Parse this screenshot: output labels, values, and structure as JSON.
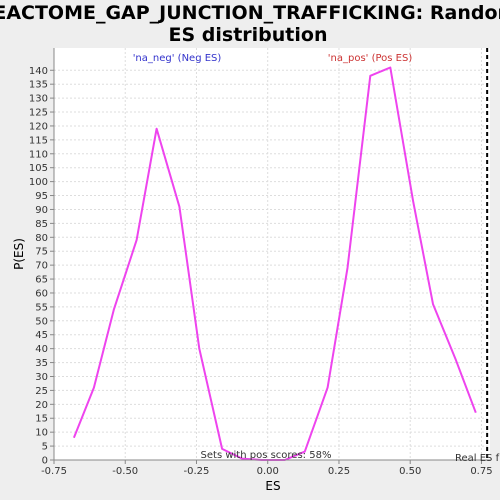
{
  "chart_data": {
    "type": "line",
    "title_line1": "REACTOME_GAP_JUNCTION_TRAFFICKING: Random",
    "title_line2": "ES distribution",
    "xlabel": "ES",
    "ylabel": "P(ES)",
    "xlim": [
      -0.75,
      0.78
    ],
    "ylim": [
      0,
      148
    ],
    "x_ticks": [
      -0.75,
      -0.5,
      -0.25,
      0.0,
      0.25,
      0.5,
      0.75
    ],
    "x_tick_labels": [
      "-0.75",
      "-0.50",
      "-0.25",
      "0.00",
      "0.25",
      "0.50",
      "0.75"
    ],
    "y_ticks": [
      0,
      5,
      10,
      15,
      20,
      25,
      30,
      35,
      40,
      45,
      50,
      55,
      60,
      65,
      70,
      75,
      80,
      85,
      90,
      95,
      100,
      105,
      110,
      115,
      120,
      125,
      130,
      135,
      140
    ],
    "y_tick_labels": [
      "0",
      "5",
      "10",
      "15",
      "20",
      "25",
      "30",
      "35",
      "40",
      "45",
      "50",
      "55",
      "60",
      "65",
      "70",
      "75",
      "80",
      "85",
      "90",
      "95",
      "100",
      "105",
      "110",
      "115",
      "120",
      "125",
      "130",
      "135",
      "140"
    ],
    "grid": true,
    "series": [
      {
        "color": "#ee44ee",
        "x": [
          -0.68,
          -0.61,
          -0.54,
          -0.46,
          -0.39,
          -0.31,
          -0.24,
          -0.16,
          -0.09,
          -0.02,
          0.06,
          0.13,
          0.21,
          0.28,
          0.36,
          0.43,
          0.51,
          0.58,
          0.66,
          0.73
        ],
        "y": [
          8,
          26,
          54,
          79,
          119,
          91,
          40,
          4,
          0.5,
          0,
          0,
          3,
          26,
          69,
          138,
          141,
          93,
          56,
          36,
          17
        ]
      }
    ],
    "annotations": {
      "neg_label": "'na_neg' (Neg ES)",
      "neg_color": "#3333cc",
      "pos_label": "'na_pos' (Pos ES)",
      "pos_color": "#cc3333",
      "pos_scores_text": "Sets with pos scores: 58%",
      "real_es_label": "Real ES f",
      "real_es_value": 0.77
    }
  }
}
